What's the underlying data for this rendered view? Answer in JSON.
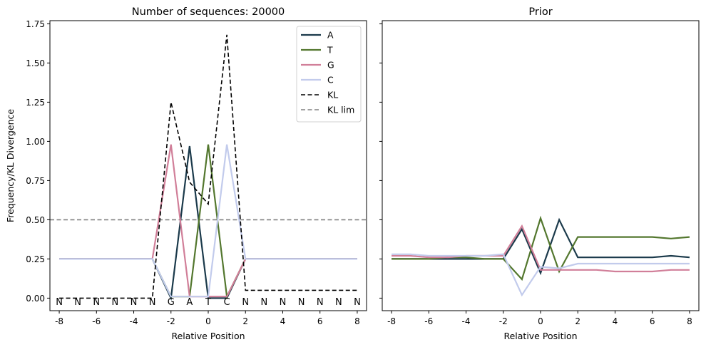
{
  "chart_data": [
    {
      "type": "line",
      "title": "Number of sequences: 20000",
      "xlabel": "Relative Position",
      "ylabel": "Frequency/KL Divergence",
      "xlim": [
        -8.5,
        8.5
      ],
      "ylim": [
        -0.08,
        1.77
      ],
      "xticks": [
        -8,
        -6,
        -4,
        -2,
        0,
        2,
        4,
        6,
        8
      ],
      "xtick_labels": [
        "-8",
        "-6",
        "-4",
        "-2",
        "0",
        "2",
        "4",
        "6",
        "8"
      ],
      "yticks": [
        0.0,
        0.25,
        0.5,
        0.75,
        1.0,
        1.25,
        1.5,
        1.75
      ],
      "ytick_labels": [
        "0.00",
        "0.25",
        "0.50",
        "0.75",
        "1.00",
        "1.25",
        "1.50",
        "1.75"
      ],
      "x": [
        -8,
        -7,
        -6,
        -5,
        -4,
        -3,
        -2,
        -1,
        0,
        1,
        2,
        3,
        4,
        5,
        6,
        7,
        8
      ],
      "series": [
        {
          "name": "A",
          "color": "#1b3a4b",
          "style": "solid",
          "values": [
            0.25,
            0.25,
            0.25,
            0.25,
            0.25,
            0.25,
            0.0,
            0.97,
            0.0,
            0.0,
            0.25,
            0.25,
            0.25,
            0.25,
            0.25,
            0.25,
            0.25
          ]
        },
        {
          "name": "T",
          "color": "#53772e",
          "style": "solid",
          "values": [
            0.25,
            0.25,
            0.25,
            0.25,
            0.25,
            0.25,
            0.01,
            0.01,
            0.98,
            0.01,
            0.25,
            0.25,
            0.25,
            0.25,
            0.25,
            0.25,
            0.25
          ]
        },
        {
          "name": "G",
          "color": "#d17f99",
          "style": "solid",
          "values": [
            0.25,
            0.25,
            0.25,
            0.25,
            0.25,
            0.25,
            0.98,
            0.01,
            0.01,
            0.01,
            0.25,
            0.25,
            0.25,
            0.25,
            0.25,
            0.25,
            0.25
          ]
        },
        {
          "name": "C",
          "color": "#c2cbec",
          "style": "solid",
          "values": [
            0.25,
            0.25,
            0.25,
            0.25,
            0.25,
            0.25,
            0.01,
            0.01,
            0.01,
            0.98,
            0.25,
            0.25,
            0.25,
            0.25,
            0.25,
            0.25,
            0.25
          ]
        },
        {
          "name": "KL",
          "color": "#000000",
          "style": "dashed",
          "values": [
            0.0,
            0.0,
            0.0,
            0.0,
            0.0,
            0.0,
            1.25,
            0.74,
            0.6,
            1.68,
            0.05,
            0.05,
            0.05,
            0.05,
            0.05,
            0.05,
            0.05
          ]
        }
      ],
      "hlines": [
        {
          "name": "KL lim",
          "y": 0.5,
          "color": "#808080",
          "style": "dashed"
        }
      ],
      "sequence_labels": [
        "N",
        "N",
        "N",
        "N",
        "N",
        "N",
        "G",
        "A",
        "T",
        "C",
        "N",
        "N",
        "N",
        "N",
        "N",
        "N",
        "N"
      ],
      "legend": {
        "position": "top-right",
        "entries": [
          "A",
          "T",
          "G",
          "C",
          "KL",
          "KL lim"
        ]
      }
    },
    {
      "type": "line",
      "title": "Prior",
      "xlabel": "Relative Position",
      "ylabel": "",
      "xlim": [
        -8.5,
        8.5
      ],
      "ylim": [
        -0.08,
        1.77
      ],
      "xticks": [
        -8,
        -6,
        -4,
        -2,
        0,
        2,
        4,
        6,
        8
      ],
      "xtick_labels": [
        "-8",
        "-6",
        "-4",
        "-2",
        "0",
        "2",
        "4",
        "6",
        "8"
      ],
      "yticks": [
        0.0,
        0.25,
        0.5,
        0.75,
        1.0,
        1.25,
        1.5,
        1.75
      ],
      "x": [
        -8,
        -7,
        -6,
        -5,
        -4,
        -3,
        -2,
        -1,
        0,
        1,
        2,
        3,
        4,
        5,
        6,
        7,
        8
      ],
      "series": [
        {
          "name": "A",
          "color": "#1b3a4b",
          "style": "solid",
          "values": [
            0.25,
            0.25,
            0.25,
            0.25,
            0.25,
            0.25,
            0.25,
            0.44,
            0.16,
            0.5,
            0.26,
            0.26,
            0.26,
            0.26,
            0.26,
            0.27,
            0.26
          ]
        },
        {
          "name": "T",
          "color": "#53772e",
          "style": "solid",
          "values": [
            0.25,
            0.25,
            0.25,
            0.26,
            0.26,
            0.25,
            0.25,
            0.12,
            0.51,
            0.17,
            0.39,
            0.39,
            0.39,
            0.39,
            0.39,
            0.38,
            0.39
          ]
        },
        {
          "name": "G",
          "color": "#d17f99",
          "style": "solid",
          "values": [
            0.27,
            0.27,
            0.26,
            0.26,
            0.27,
            0.27,
            0.27,
            0.46,
            0.18,
            0.18,
            0.18,
            0.18,
            0.17,
            0.17,
            0.17,
            0.18,
            0.18
          ]
        },
        {
          "name": "C",
          "color": "#c2cbec",
          "style": "solid",
          "values": [
            0.28,
            0.28,
            0.27,
            0.27,
            0.27,
            0.27,
            0.28,
            0.02,
            0.2,
            0.19,
            0.22,
            0.22,
            0.22,
            0.22,
            0.22,
            0.22,
            0.22
          ]
        }
      ]
    }
  ]
}
